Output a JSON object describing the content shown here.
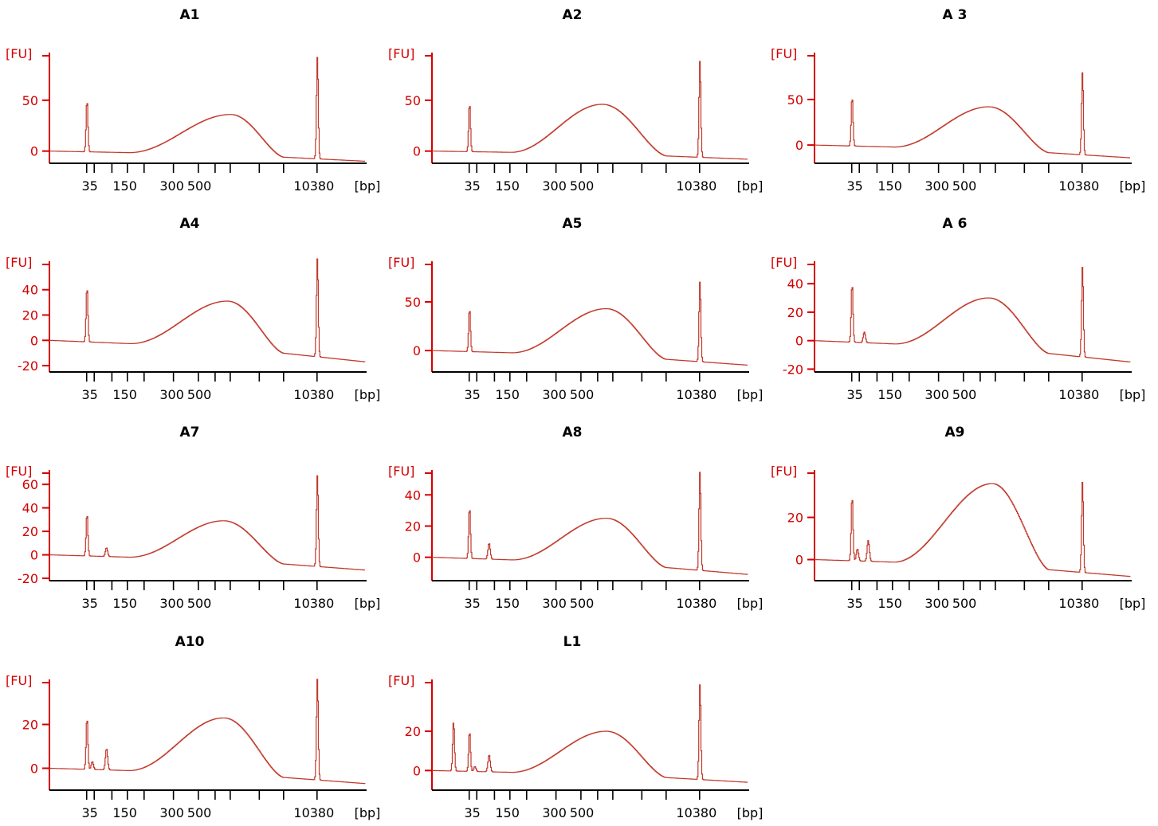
{
  "chart_data": [
    {
      "type": "line",
      "title": "A1",
      "ylabel": "[FU]",
      "xlabel": "[bp]",
      "yticks": [
        0,
        50
      ],
      "ylim": [
        -12,
        100
      ],
      "xticks": [
        "35",
        "",
        "150",
        "300",
        "500",
        "",
        "",
        "",
        "",
        "",
        "",
        "10380"
      ],
      "xtick_labels": [
        "35",
        "150",
        "300",
        "500",
        "10380"
      ],
      "peaks": [
        {
          "x": 35,
          "y": 50
        },
        {
          "x": 10380,
          "y": 93
        }
      ],
      "smear": {
        "start": 150,
        "peak_x": 700,
        "peak_y": 36,
        "end": 2000
      },
      "baseline_start": 0,
      "baseline_end": -10,
      "minor_peaks": []
    },
    {
      "type": "line",
      "title": "A2",
      "ylabel": "[FU]",
      "xlabel": "[bp]",
      "yticks": [
        0,
        50
      ],
      "ylim": [
        -12,
        100
      ],
      "xticks": [
        "35",
        "",
        "150",
        "300",
        "500",
        "",
        "",
        "",
        "",
        "",
        "",
        "10380"
      ],
      "xtick_labels": [
        "35",
        "150",
        "300",
        "500",
        "10380"
      ],
      "peaks": [
        {
          "x": 35,
          "y": 47
        },
        {
          "x": 10380,
          "y": 89
        }
      ],
      "smear": {
        "start": 150,
        "peak_x": 550,
        "peak_y": 46,
        "end": 2000
      },
      "baseline_start": 0,
      "baseline_end": -8,
      "minor_peaks": []
    },
    {
      "type": "line",
      "title": "A 3",
      "ylabel": "[FU]",
      "xlabel": "[bp]",
      "yticks": [
        0,
        50
      ],
      "ylim": [
        -20,
        105
      ],
      "xticks": [
        "35",
        "",
        "150",
        "300",
        "500",
        "",
        "",
        "",
        "",
        "",
        "",
        "10380"
      ],
      "xtick_labels": [
        "35",
        "150",
        "300",
        "500",
        "10380"
      ],
      "peaks": [
        {
          "x": 35,
          "y": 53
        },
        {
          "x": 10380,
          "y": 80
        }
      ],
      "smear": {
        "start": 150,
        "peak_x": 600,
        "peak_y": 42,
        "end": 2000
      },
      "baseline_start": 0,
      "baseline_end": -14,
      "minor_peaks": []
    },
    {
      "type": "line",
      "title": "A4",
      "ylabel": "[FU]",
      "xlabel": "[bp]",
      "yticks": [
        -20,
        0,
        20,
        40
      ],
      "ylim": [
        -25,
        65
      ],
      "xticks": [
        "35",
        "",
        "150",
        "300",
        "500",
        "",
        "",
        "",
        "",
        "",
        "",
        "10380"
      ],
      "xtick_labels": [
        "35",
        "150",
        "300",
        "500",
        "10380"
      ],
      "peaks": [
        {
          "x": 35,
          "y": 42
        },
        {
          "x": 10380,
          "y": 65
        }
      ],
      "smear": {
        "start": 150,
        "peak_x": 650,
        "peak_y": 31,
        "end": 2000
      },
      "baseline_start": 0,
      "baseline_end": -17,
      "minor_peaks": []
    },
    {
      "type": "line",
      "title": "A5",
      "ylabel": "[FU]",
      "xlabel": "[bp]",
      "yticks": [
        0,
        50
      ],
      "ylim": [
        -22,
        95
      ],
      "xticks": [
        "35",
        "",
        "150",
        "300",
        "500",
        "",
        "",
        "",
        "",
        "",
        "",
        "10380"
      ],
      "xtick_labels": [
        "35",
        "150",
        "300",
        "500",
        "10380"
      ],
      "peaks": [
        {
          "x": 35,
          "y": 43
        },
        {
          "x": 10380,
          "y": 71
        }
      ],
      "smear": {
        "start": 150,
        "peak_x": 600,
        "peak_y": 43,
        "end": 2000
      },
      "baseline_start": 0,
      "baseline_end": -15,
      "minor_peaks": []
    },
    {
      "type": "line",
      "title": "A 6",
      "ylabel": "[FU]",
      "xlabel": "[bp]",
      "yticks": [
        -20,
        0,
        20,
        40
      ],
      "ylim": [
        -22,
        58
      ],
      "xticks": [
        "35",
        "",
        "150",
        "300",
        "500",
        "",
        "",
        "",
        "",
        "",
        "",
        "10380"
      ],
      "xtick_labels": [
        "35",
        "150",
        "300",
        "500",
        "10380"
      ],
      "peaks": [
        {
          "x": 35,
          "y": 40
        },
        {
          "x": 10380,
          "y": 52
        }
      ],
      "smear": {
        "start": 150,
        "peak_x": 600,
        "peak_y": 30,
        "end": 2000
      },
      "baseline_start": 0,
      "baseline_end": -15,
      "minor_peaks": [
        {
          "x": 60,
          "y": 6
        }
      ]
    },
    {
      "type": "line",
      "title": "A7",
      "ylabel": "[FU]",
      "xlabel": "[bp]",
      "yticks": [
        -20,
        0,
        20,
        40,
        60
      ],
      "ylim": [
        -22,
        75
      ],
      "xticks": [
        "35",
        "",
        "150",
        "300",
        "500",
        "",
        "",
        "",
        "",
        "",
        "",
        "10380"
      ],
      "xtick_labels": [
        "35",
        "150",
        "300",
        "500",
        "10380"
      ],
      "peaks": [
        {
          "x": 35,
          "y": 35
        },
        {
          "x": 10380,
          "y": 68
        }
      ],
      "smear": {
        "start": 150,
        "peak_x": 600,
        "peak_y": 29,
        "end": 2000
      },
      "baseline_start": 0,
      "baseline_end": -13,
      "minor_peaks": [
        {
          "x": 80,
          "y": 6
        }
      ]
    },
    {
      "type": "line",
      "title": "A8",
      "ylabel": "[FU]",
      "xlabel": "[bp]",
      "yticks": [
        0,
        20,
        40
      ],
      "ylim": [
        -15,
        58
      ],
      "xticks": [
        "35",
        "",
        "150",
        "300",
        "500",
        "",
        "",
        "",
        "",
        "",
        "",
        "10380"
      ],
      "xtick_labels": [
        "35",
        "150",
        "300",
        "500",
        "10380"
      ],
      "peaks": [
        {
          "x": 35,
          "y": 32
        },
        {
          "x": 10380,
          "y": 55
        }
      ],
      "smear": {
        "start": 150,
        "peak_x": 600,
        "peak_y": 25,
        "end": 2000
      },
      "baseline_start": 0,
      "baseline_end": -11,
      "minor_peaks": [
        {
          "x": 80,
          "y": 9
        }
      ]
    },
    {
      "type": "line",
      "title": "A9",
      "ylabel": "[FU]",
      "xlabel": "[bp]",
      "yticks": [
        0,
        20
      ],
      "ylim": [
        -10,
        44
      ],
      "xticks": [
        "35",
        "",
        "150",
        "300",
        "500",
        "",
        "",
        "",
        "",
        "",
        "",
        "10380"
      ],
      "xtick_labels": [
        "35",
        "150",
        "300",
        "500",
        "10380"
      ],
      "peaks": [
        {
          "x": 35,
          "y": 30
        },
        {
          "x": 10380,
          "y": 37
        }
      ],
      "smear": {
        "start": 150,
        "peak_x": 650,
        "peak_y": 36,
        "end": 2000
      },
      "baseline_start": 0,
      "baseline_end": -8,
      "minor_peaks": [
        {
          "x": 45,
          "y": 5
        },
        {
          "x": 70,
          "y": 9
        }
      ]
    },
    {
      "type": "line",
      "title": "A10",
      "ylabel": "[FU]",
      "xlabel": "[bp]",
      "yticks": [
        0,
        20
      ],
      "ylim": [
        -10,
        42
      ],
      "xticks": [
        "35",
        "",
        "150",
        "300",
        "500",
        "",
        "",
        "",
        "",
        "",
        "",
        "10380"
      ],
      "xtick_labels": [
        "35",
        "150",
        "300",
        "500",
        "10380"
      ],
      "peaks": [
        {
          "x": 35,
          "y": 23
        },
        {
          "x": 10380,
          "y": 41
        }
      ],
      "smear": {
        "start": 150,
        "peak_x": 600,
        "peak_y": 23,
        "end": 2000
      },
      "baseline_start": 0,
      "baseline_end": -7,
      "minor_peaks": [
        {
          "x": 45,
          "y": 3
        },
        {
          "x": 80,
          "y": 9
        }
      ]
    },
    {
      "type": "line",
      "title": "L1",
      "ylabel": "[FU]",
      "xlabel": "[bp]",
      "yticks": [
        0,
        20
      ],
      "ylim": [
        -10,
        48
      ],
      "xticks": [
        "35",
        "",
        "150",
        "300",
        "500",
        "",
        "",
        "",
        "",
        "",
        "",
        "10380"
      ],
      "xtick_labels": [
        "35",
        "150",
        "300",
        "500",
        "10380"
      ],
      "peaks": [
        {
          "x": 20,
          "y": 25
        },
        {
          "x": 35,
          "y": 20
        },
        {
          "x": 10380,
          "y": 44
        }
      ],
      "smear": {
        "start": 150,
        "peak_x": 600,
        "peak_y": 20,
        "end": 2000
      },
      "baseline_start": 0,
      "baseline_end": -6,
      "minor_peaks": [
        {
          "x": 45,
          "y": 2
        },
        {
          "x": 80,
          "y": 8
        }
      ]
    }
  ]
}
